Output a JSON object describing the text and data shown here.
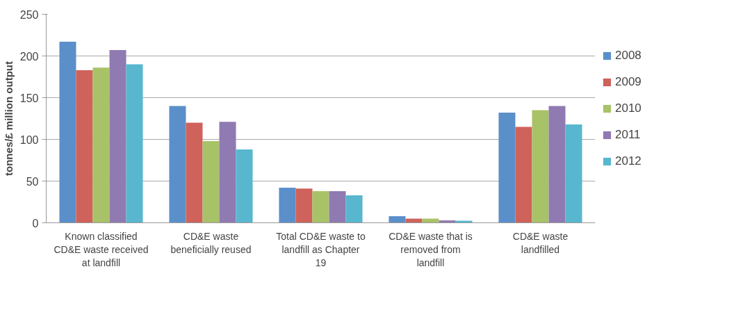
{
  "chart_data": {
    "type": "bar",
    "ylabel": "tonnes/£ million output",
    "categories": [
      "Known classified CD&E waste received at landfill",
      "CD&E waste beneficially reused",
      "Total CD&E waste to landfill as Chapter 19",
      "CD&E waste that is removed from landfill",
      "CD&E waste landfilled"
    ],
    "series": [
      {
        "name": "2008",
        "color": "#5b8fc9",
        "values": [
          217,
          140,
          42,
          8,
          132
        ]
      },
      {
        "name": "2009",
        "color": "#cf625a",
        "values": [
          183,
          120,
          41,
          5,
          115
        ]
      },
      {
        "name": "2010",
        "color": "#a8c268",
        "values": [
          186,
          98,
          38,
          5,
          135
        ]
      },
      {
        "name": "2011",
        "color": "#907ab2",
        "values": [
          207,
          121,
          38,
          3,
          140
        ]
      },
      {
        "name": "2012",
        "color": "#58b7cf",
        "values": [
          190,
          88,
          33,
          2.5,
          118
        ]
      }
    ],
    "ylim": [
      0,
      250
    ],
    "yticks": [
      0,
      50,
      100,
      150,
      200,
      250
    ],
    "grid": "y",
    "legend": "right"
  }
}
